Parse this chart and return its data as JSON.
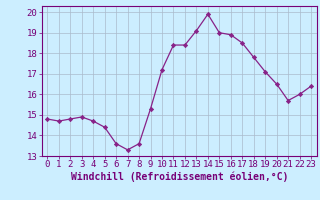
{
  "x": [
    0,
    1,
    2,
    3,
    4,
    5,
    6,
    7,
    8,
    9,
    10,
    11,
    12,
    13,
    14,
    15,
    16,
    17,
    18,
    19,
    20,
    21,
    22,
    23
  ],
  "y": [
    14.8,
    14.7,
    14.8,
    14.9,
    14.7,
    14.4,
    13.6,
    13.3,
    13.6,
    15.3,
    17.2,
    18.4,
    18.4,
    19.1,
    19.9,
    19.0,
    18.9,
    18.5,
    17.8,
    17.1,
    16.5,
    15.7,
    16.0,
    16.4
  ],
  "line_color": "#882288",
  "marker": "D",
  "marker_size": 2.2,
  "bg_color": "#cceeff",
  "grid_color": "#aabbcc",
  "xlabel": "Windchill (Refroidissement éolien,°C)",
  "xlim": [
    -0.5,
    23.5
  ],
  "ylim": [
    13.0,
    20.3
  ],
  "yticks": [
    13,
    14,
    15,
    16,
    17,
    18,
    19,
    20
  ],
  "xticks": [
    0,
    1,
    2,
    3,
    4,
    5,
    6,
    7,
    8,
    9,
    10,
    11,
    12,
    13,
    14,
    15,
    16,
    17,
    18,
    19,
    20,
    21,
    22,
    23
  ],
  "tick_label_fontsize": 6.5,
  "xlabel_fontsize": 7.0,
  "axis_text_color": "#770077",
  "spine_color": "#770077"
}
